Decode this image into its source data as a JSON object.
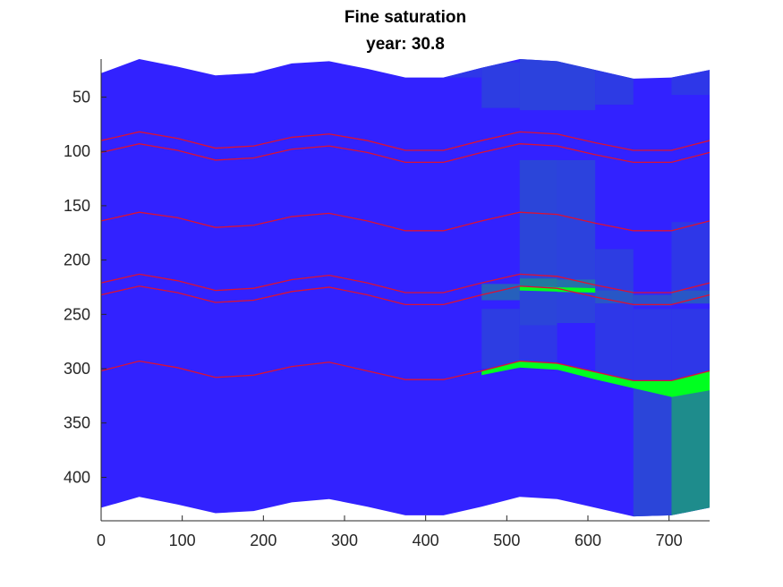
{
  "chart_data": {
    "type": "heatmap",
    "title": "Fine saturation",
    "subtitle": "year: 30.8",
    "xlabel": "",
    "ylabel": "",
    "xlim": [
      0,
      750
    ],
    "ylim": [
      15,
      440
    ],
    "y_reversed": true,
    "grid": false,
    "x_ticks": [
      0,
      100,
      200,
      300,
      400,
      500,
      600,
      700
    ],
    "y_ticks": [
      50,
      100,
      150,
      200,
      250,
      300,
      350,
      400
    ],
    "colors": {
      "brine": "#3222ff",
      "co2": "#00ff20",
      "mixed": "#1e8c8c",
      "horizon_line": "#dd1133"
    },
    "x_nodes": [
      0,
      47,
      94,
      141,
      188,
      235,
      281,
      328,
      375,
      422,
      469,
      516,
      562,
      609,
      656,
      703,
      750
    ],
    "top_surface": [
      28,
      15,
      22,
      30,
      28,
      19,
      17,
      24,
      32,
      32,
      23,
      15,
      17,
      25,
      33,
      32,
      25
    ],
    "bottom_surface": [
      428,
      418,
      425,
      433,
      431,
      423,
      420,
      427,
      435,
      435,
      427,
      418,
      420,
      428,
      436,
      435,
      428
    ],
    "horizons": [
      [
        90,
        82,
        88,
        97,
        95,
        87,
        84,
        90,
        99,
        99,
        90,
        82,
        84,
        92,
        99,
        99,
        90
      ],
      [
        101,
        93,
        99,
        108,
        106,
        98,
        95,
        101,
        110,
        110,
        101,
        93,
        95,
        103,
        110,
        110,
        101
      ],
      [
        164,
        156,
        161,
        170,
        168,
        160,
        157,
        164,
        173,
        173,
        164,
        156,
        158,
        166,
        173,
        173,
        164
      ],
      [
        221,
        213,
        219,
        228,
        226,
        218,
        214,
        221,
        230,
        230,
        221,
        213,
        215,
        223,
        230,
        230,
        221
      ],
      [
        232,
        224,
        230,
        239,
        237,
        229,
        225,
        232,
        241,
        241,
        232,
        224,
        226,
        234,
        241,
        241,
        232
      ],
      [
        302,
        293,
        299,
        308,
        306,
        298,
        294,
        302,
        310,
        310,
        302,
        293,
        295,
        303,
        311,
        311,
        302
      ]
    ],
    "cells": [
      {
        "x": [
          422,
          469
        ],
        "y": [
          20,
          32
        ],
        "sat": 0.12
      },
      {
        "x": [
          469,
          516
        ],
        "y": [
          18,
          60
        ],
        "sat": 0.15
      },
      {
        "x": [
          516,
          609
        ],
        "y": [
          15,
          62
        ],
        "sat": 0.18
      },
      {
        "x": [
          609,
          656
        ],
        "y": [
          22,
          57
        ],
        "sat": 0.14
      },
      {
        "x": [
          703,
          750
        ],
        "y": [
          22,
          48
        ],
        "sat": 0.12
      },
      {
        "x": [
          516,
          562
        ],
        "y": [
          108,
          262
        ],
        "sat": 0.2
      },
      {
        "x": [
          562,
          609
        ],
        "y": [
          108,
          258
        ],
        "sat": 0.18
      },
      {
        "x": [
          609,
          656
        ],
        "y": [
          190,
          240
        ],
        "sat": 0.15
      },
      {
        "x": [
          703,
          750
        ],
        "y": [
          165,
          240
        ],
        "sat": 0.12
      },
      {
        "x": [
          469,
          516
        ],
        "y": [
          222,
          237
        ],
        "sat": 0.35
      },
      {
        "x": [
          516,
          562
        ],
        "y": [
          217,
          228
        ],
        "sat": 0.5
      },
      {
        "x": [
          562,
          609
        ],
        "y": [
          218,
          230
        ],
        "sat": 0.45
      },
      {
        "x": [
          609,
          656
        ],
        "y": [
          228,
          240
        ],
        "sat": 0.3
      },
      {
        "x": [
          656,
          703
        ],
        "y": [
          232,
          242
        ],
        "sat": 0.25
      },
      {
        "x": [
          703,
          750
        ],
        "y": [
          228,
          240
        ],
        "sat": 0.3
      },
      {
        "x": [
          469,
          516
        ],
        "y": [
          245,
          300
        ],
        "sat": 0.15
      },
      {
        "x": [
          516,
          562
        ],
        "y": [
          260,
          295
        ],
        "sat": 0.12
      },
      {
        "x": [
          609,
          656
        ],
        "y": [
          240,
          310
        ],
        "sat": 0.12
      },
      {
        "x": [
          656,
          703
        ],
        "y": [
          245,
          312
        ],
        "sat": 0.12
      },
      {
        "x": [
          703,
          750
        ],
        "y": [
          245,
          310
        ],
        "sat": 0.12
      },
      {
        "x": [
          656,
          703
        ],
        "y": [
          312,
          440
        ],
        "sat": 0.2
      },
      {
        "x": [
          703,
          750
        ],
        "y": [
          320,
          440
        ],
        "sat": 0.6
      }
    ],
    "plumes": [
      {
        "x": [
          469,
          750
        ],
        "top": [
          302,
          293,
          295,
          303,
          311,
          311,
          302
        ],
        "bottom": [
          306,
          299,
          301,
          310,
          318,
          326,
          320
        ],
        "sat": 1.0
      },
      {
        "x": [
          516,
          609
        ],
        "top": [
          224,
          226
        ],
        "bottom": [
          228,
          230
        ],
        "sat": 1.0
      }
    ]
  }
}
